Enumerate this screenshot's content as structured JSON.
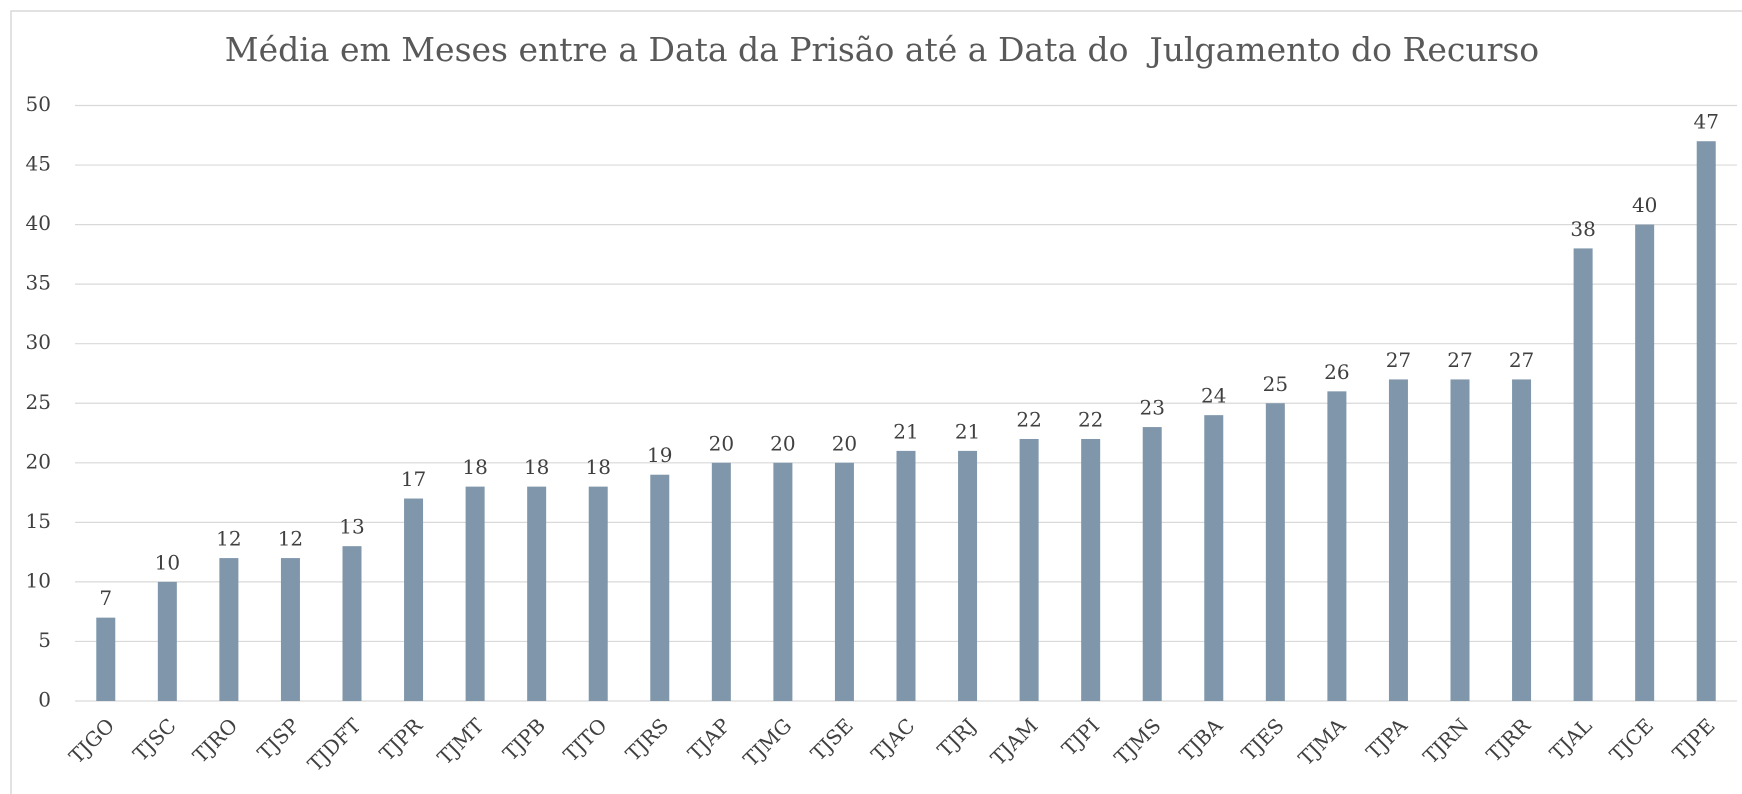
{
  "chart_data": {
    "type": "bar",
    "title": "Média em Meses entre a Data da Prisão até a Data do  Julgamento do Recurso",
    "categories": [
      "TJGO",
      "TJSC",
      "TJRO",
      "TJSP",
      "TJDFT",
      "TJPR",
      "TJMT",
      "TJPB",
      "TJTO",
      "TJRS",
      "TJAP",
      "TJMG",
      "TJSE",
      "TJAC",
      "TJRJ",
      "TJAM",
      "TJPI",
      "TJMS",
      "TJBA",
      "TJES",
      "TJMA",
      "TJPA",
      "TJRN",
      "TJRR",
      "TJAL",
      "TJCE",
      "TJPE"
    ],
    "values": [
      7,
      10,
      12,
      12,
      13,
      17,
      18,
      18,
      18,
      19,
      20,
      20,
      20,
      21,
      21,
      22,
      22,
      23,
      24,
      25,
      26,
      27,
      27,
      27,
      38,
      40,
      47
    ],
    "color": "#7f96ab",
    "ylim": [
      0,
      50
    ],
    "yticks": [
      0,
      5,
      10,
      15,
      20,
      25,
      30,
      35,
      40,
      45,
      50
    ],
    "grid": true
  }
}
